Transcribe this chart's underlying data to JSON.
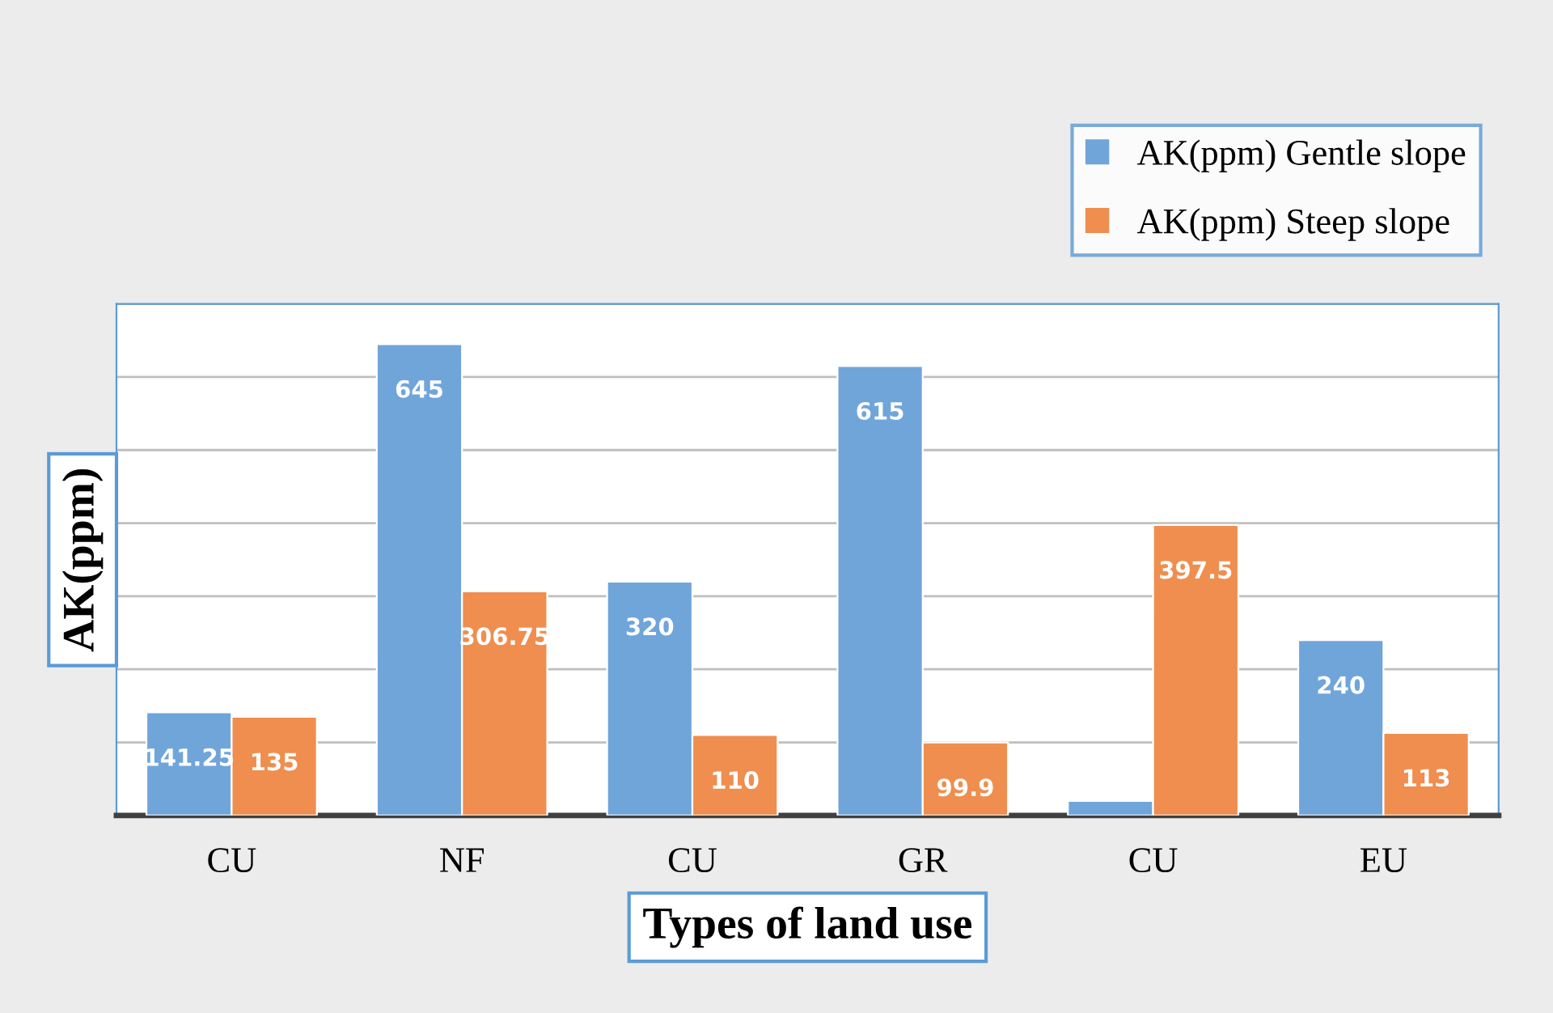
{
  "chart_data": {
    "type": "bar",
    "xlabel": "Types of land use",
    "ylabel": "AK(ppm)",
    "categories": [
      "CU",
      "NF",
      "CU",
      "GR",
      "CU",
      "EU"
    ],
    "series": [
      {
        "name": "AK(ppm) Gentle slope",
        "color": "#70a5da",
        "values": [
          141.25,
          645,
          320,
          615,
          20,
          240
        ],
        "value_labels": [
          "141.25",
          "645",
          "320",
          "615",
          null,
          "240"
        ]
      },
      {
        "name": "AK(ppm) Steep slope",
        "color": "#ef8e4f",
        "values": [
          135,
          306.75,
          110,
          99.9,
          397.5,
          113
        ],
        "value_labels": [
          "135",
          "306.75",
          "110",
          "99.9",
          "397.5",
          "113"
        ]
      }
    ],
    "ylim": [
      0,
      700
    ],
    "yticks": [
      {
        "value": 0,
        "label": null
      },
      {
        "value": 100,
        "label": null
      },
      {
        "value": 200,
        "label": null
      },
      {
        "value": 300,
        "label": null
      },
      {
        "value": 400,
        "label": null
      },
      {
        "value": 500,
        "label": null
      },
      {
        "value": 600,
        "label": null
      },
      {
        "value": 700,
        "label": null
      }
    ],
    "tick_labels": "x",
    "grid": "y",
    "legend": "top right"
  }
}
